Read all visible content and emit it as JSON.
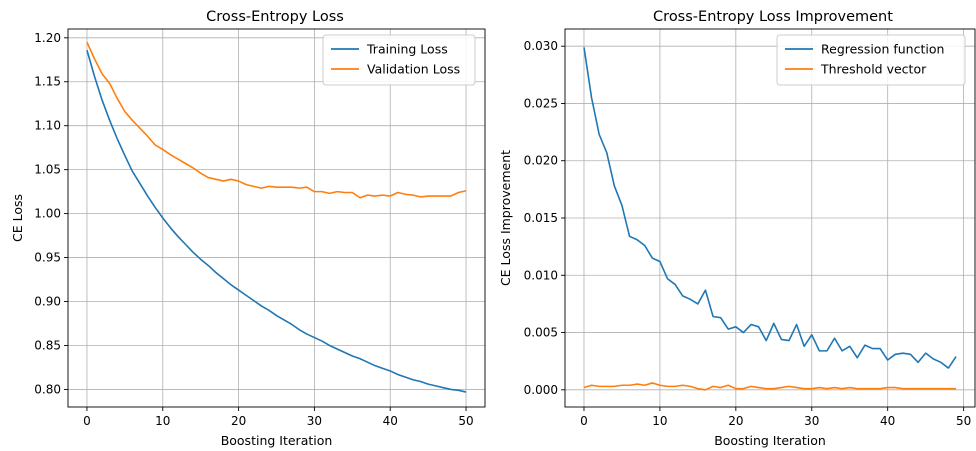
{
  "chart_data": [
    {
      "type": "line",
      "title": "Cross-Entropy Loss",
      "xlabel": "Boosting Iteration",
      "ylabel": "CE Loss",
      "xlim": [
        -2.5,
        52.5
      ],
      "ylim": [
        0.78,
        1.21
      ],
      "xticks": [
        0,
        10,
        20,
        30,
        40,
        50
      ],
      "yticks": [
        0.8,
        0.85,
        0.9,
        0.95,
        1.0,
        1.05,
        1.1,
        1.15,
        1.2
      ],
      "ytick_format": 2,
      "grid": true,
      "legend_position": "top-right",
      "series": [
        {
          "name": "Training Loss",
          "color": "#1f77b4",
          "x": [
            0,
            1,
            2,
            3,
            4,
            5,
            6,
            7,
            8,
            9,
            10,
            11,
            12,
            13,
            14,
            15,
            16,
            17,
            18,
            19,
            20,
            21,
            22,
            23,
            24,
            25,
            26,
            27,
            28,
            29,
            30,
            31,
            32,
            33,
            34,
            35,
            36,
            37,
            38,
            39,
            40,
            41,
            42,
            43,
            44,
            45,
            46,
            47,
            48,
            49,
            50
          ],
          "y": [
            1.186,
            1.156,
            1.129,
            1.106,
            1.085,
            1.066,
            1.048,
            1.034,
            1.02,
            1.007,
            0.995,
            0.984,
            0.974,
            0.965,
            0.956,
            0.948,
            0.941,
            0.933,
            0.926,
            0.919,
            0.913,
            0.907,
            0.901,
            0.895,
            0.89,
            0.884,
            0.879,
            0.874,
            0.868,
            0.863,
            0.859,
            0.855,
            0.85,
            0.846,
            0.842,
            0.838,
            0.835,
            0.831,
            0.827,
            0.824,
            0.821,
            0.817,
            0.814,
            0.811,
            0.809,
            0.806,
            0.804,
            0.802,
            0.8,
            0.799,
            0.797
          ]
        },
        {
          "name": "Validation Loss",
          "color": "#ff7f0e",
          "x": [
            0,
            1,
            2,
            3,
            4,
            5,
            6,
            7,
            8,
            9,
            10,
            11,
            12,
            13,
            14,
            15,
            16,
            17,
            18,
            19,
            20,
            21,
            22,
            23,
            24,
            25,
            26,
            27,
            28,
            29,
            30,
            31,
            32,
            33,
            34,
            35,
            36,
            37,
            38,
            39,
            40,
            41,
            42,
            43,
            44,
            45,
            46,
            47,
            48,
            49,
            50
          ],
          "y": [
            1.195,
            1.176,
            1.159,
            1.148,
            1.131,
            1.116,
            1.106,
            1.097,
            1.088,
            1.078,
            1.073,
            1.067,
            1.062,
            1.057,
            1.052,
            1.046,
            1.041,
            1.039,
            1.037,
            1.039,
            1.037,
            1.033,
            1.031,
            1.029,
            1.031,
            1.03,
            1.03,
            1.03,
            1.029,
            1.03,
            1.025,
            1.025,
            1.023,
            1.025,
            1.024,
            1.024,
            1.018,
            1.021,
            1.02,
            1.021,
            1.02,
            1.024,
            1.022,
            1.021,
            1.019,
            1.02,
            1.02,
            1.02,
            1.02,
            1.024,
            1.026
          ]
        }
      ]
    },
    {
      "type": "line",
      "title": "Cross-Entropy Loss Improvement",
      "xlabel": "Boosting Iteration",
      "ylabel": "CE Loss Improvement",
      "xlim": [
        -2.5,
        51.5
      ],
      "ylim": [
        -0.0015,
        0.0315
      ],
      "xticks": [
        0,
        10,
        20,
        30,
        40,
        50
      ],
      "yticks": [
        0.0,
        0.005,
        0.01,
        0.015,
        0.02,
        0.025,
        0.03
      ],
      "ytick_format": 3,
      "grid": true,
      "legend_position": "top-right",
      "series": [
        {
          "name": "Regression function",
          "color": "#1f77b4",
          "x": [
            0,
            1,
            2,
            3,
            4,
            5,
            6,
            7,
            8,
            9,
            10,
            11,
            12,
            13,
            14,
            15,
            16,
            17,
            18,
            19,
            20,
            21,
            22,
            23,
            24,
            25,
            26,
            27,
            28,
            29,
            30,
            31,
            32,
            33,
            34,
            35,
            36,
            37,
            38,
            39,
            40,
            41,
            42,
            43,
            44,
            45,
            46,
            47,
            48,
            49
          ],
          "y": [
            0.0299,
            0.0255,
            0.0223,
            0.0207,
            0.0178,
            0.0161,
            0.0134,
            0.0131,
            0.0126,
            0.0115,
            0.0112,
            0.0097,
            0.0092,
            0.0082,
            0.0079,
            0.0075,
            0.0087,
            0.0064,
            0.0063,
            0.0053,
            0.0055,
            0.005,
            0.0057,
            0.0055,
            0.0043,
            0.0058,
            0.0044,
            0.0043,
            0.0057,
            0.0038,
            0.0048,
            0.0034,
            0.0034,
            0.0045,
            0.0034,
            0.0038,
            0.0028,
            0.0039,
            0.0036,
            0.0036,
            0.0026,
            0.0031,
            0.0032,
            0.0031,
            0.0024,
            0.0032,
            0.0027,
            0.0024,
            0.0019,
            0.0029
          ]
        },
        {
          "name": "Threshold vector",
          "color": "#ff7f0e",
          "x": [
            0,
            1,
            2,
            3,
            4,
            5,
            6,
            7,
            8,
            9,
            10,
            11,
            12,
            13,
            14,
            15,
            16,
            17,
            18,
            19,
            20,
            21,
            22,
            23,
            24,
            25,
            26,
            27,
            28,
            29,
            30,
            31,
            32,
            33,
            34,
            35,
            36,
            37,
            38,
            39,
            40,
            41,
            42,
            43,
            44,
            45,
            46,
            47,
            48,
            49
          ],
          "y": [
            0.0002,
            0.0004,
            0.0003,
            0.0003,
            0.0003,
            0.0004,
            0.0004,
            0.0005,
            0.0004,
            0.0006,
            0.0004,
            0.0003,
            0.0003,
            0.0004,
            0.0003,
            0.0001,
            0.0,
            0.0003,
            0.0002,
            0.0004,
            0.0001,
            0.0001,
            0.0003,
            0.0002,
            0.0001,
            0.0001,
            0.0002,
            0.0003,
            0.0002,
            0.0001,
            0.0001,
            0.0002,
            0.0001,
            0.0002,
            0.0001,
            0.0002,
            0.0001,
            0.0001,
            0.0001,
            0.0001,
            0.0002,
            0.0002,
            0.0001,
            0.0001,
            0.0001,
            0.0001,
            0.0001,
            0.0001,
            0.0001,
            0.0001
          ]
        }
      ]
    }
  ]
}
